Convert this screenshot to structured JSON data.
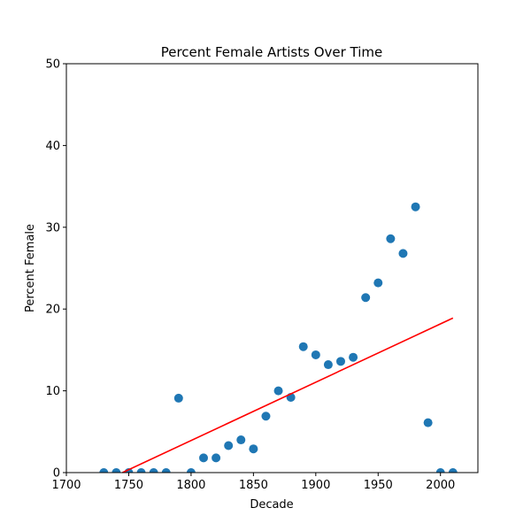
{
  "chart_data": {
    "type": "scatter",
    "title": "Percent Female Artists Over Time",
    "xlabel": "Decade",
    "ylabel": "Percent Female",
    "xlim": [
      1700,
      2030
    ],
    "ylim": [
      0,
      50
    ],
    "x_ticks": [
      "1700",
      "1750",
      "1800",
      "1850",
      "1900",
      "1950",
      "2000"
    ],
    "y_ticks": [
      "0",
      "10",
      "20",
      "30",
      "40",
      "50"
    ],
    "grid": false,
    "legend": "none",
    "colors": {
      "points": "#1f77b4",
      "trend": "#ff0000",
      "axes": "#000000"
    },
    "points": [
      {
        "x": 1730,
        "y": 0
      },
      {
        "x": 1740,
        "y": 0
      },
      {
        "x": 1750,
        "y": 0
      },
      {
        "x": 1760,
        "y": 0
      },
      {
        "x": 1770,
        "y": 0
      },
      {
        "x": 1780,
        "y": 0
      },
      {
        "x": 1790,
        "y": 9.1
      },
      {
        "x": 1800,
        "y": 0
      },
      {
        "x": 1810,
        "y": 1.8
      },
      {
        "x": 1820,
        "y": 1.8
      },
      {
        "x": 1830,
        "y": 3.3
      },
      {
        "x": 1840,
        "y": 4.0
      },
      {
        "x": 1850,
        "y": 2.9
      },
      {
        "x": 1860,
        "y": 6.9
      },
      {
        "x": 1870,
        "y": 10.0
      },
      {
        "x": 1880,
        "y": 9.2
      },
      {
        "x": 1890,
        "y": 15.4
      },
      {
        "x": 1900,
        "y": 14.4
      },
      {
        "x": 1910,
        "y": 13.2
      },
      {
        "x": 1920,
        "y": 13.6
      },
      {
        "x": 1930,
        "y": 14.1
      },
      {
        "x": 1940,
        "y": 21.4
      },
      {
        "x": 1950,
        "y": 23.2
      },
      {
        "x": 1960,
        "y": 28.6
      },
      {
        "x": 1970,
        "y": 26.8
      },
      {
        "x": 1980,
        "y": 32.5
      },
      {
        "x": 1990,
        "y": 6.1
      },
      {
        "x": 2000,
        "y": 0
      },
      {
        "x": 2010,
        "y": 0
      }
    ],
    "trend_line": [
      {
        "x": 1745,
        "y": 0
      },
      {
        "x": 2010,
        "y": 18.9
      }
    ]
  }
}
